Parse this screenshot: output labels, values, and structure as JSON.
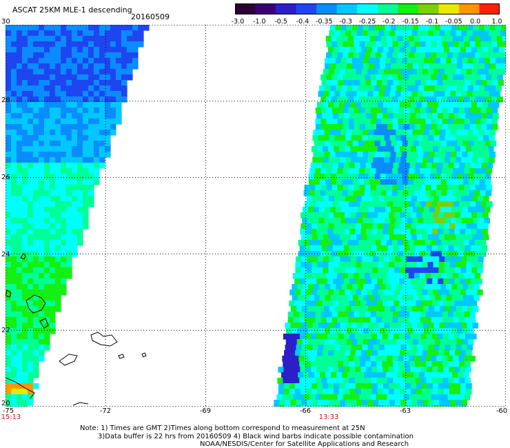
{
  "header": {
    "title": "ASCAT 25KM MLE-1 descending",
    "date": "20160509"
  },
  "colorbar": {
    "ticks": [
      "-3.0",
      "-1.0",
      "-0.5",
      "-0.4",
      "-0.35",
      "-0.3",
      "-0.25",
      "-0.2",
      "-0.15",
      "-0.1",
      "-0.05",
      "0.0",
      "1.0"
    ],
    "colors": [
      "#2b0033",
      "#3a0078",
      "#2c1ec8",
      "#1e46f0",
      "#0a8cff",
      "#00c8ff",
      "#00ffff",
      "#00ff96",
      "#14f014",
      "#7ad00a",
      "#e8e800",
      "#ff9600",
      "#ff2000"
    ]
  },
  "map": {
    "lat_labels": [
      "30",
      "28",
      "26",
      "24",
      "22",
      "20"
    ],
    "lon_labels": [
      "-75",
      "-72",
      "-69",
      "-66",
      "-63",
      "-60"
    ],
    "pass_times": [
      {
        "label": "15:13",
        "lon": -75
      },
      {
        "label": "13:33",
        "lon": -65.5
      }
    ],
    "land_color": "#000000",
    "grid_color": "#000000"
  },
  "notes": {
    "line1": "Note: 1) Times are GMT 2)Times along bottom correspond to measurement at 25N",
    "line2": "3)Data buffer is 22 hrs from 20160509 4) Black wind barbs indicate possible contamination",
    "line3": "NOAA/NESDIS/Center for Satellite Applications and Research"
  }
}
